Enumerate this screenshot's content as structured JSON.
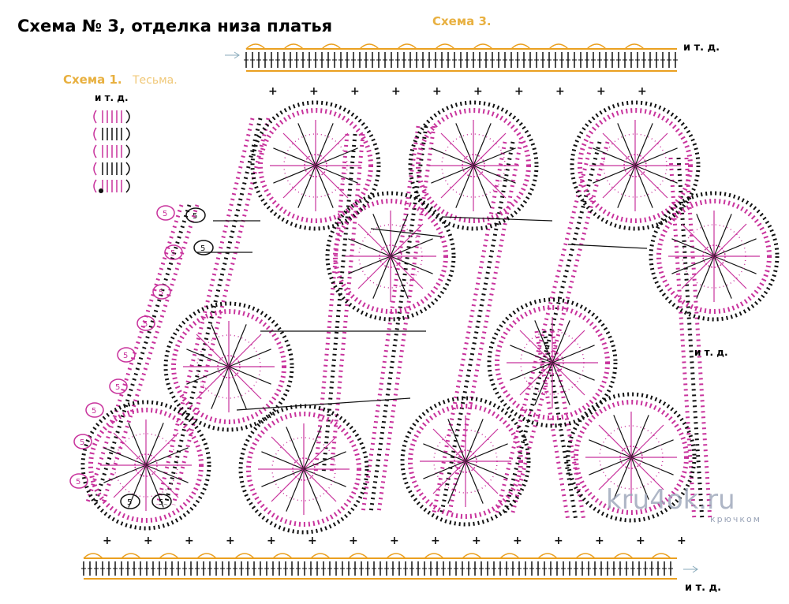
{
  "header": {
    "title": "Схема № 3, отделка низа платья"
  },
  "labels": {
    "scheme3": "Схема 3.",
    "scheme1": "Схема 1.",
    "scheme1_name": "Тесьма.",
    "etc_scheme1": "и т. д.",
    "etc_top": "и т. д.",
    "etc_middle": "и т. д.",
    "etc_bottom": "и т. д.",
    "loop_count": "5"
  },
  "watermark": {
    "site": "kru4ok.ru",
    "tagline": "крючком"
  }
}
